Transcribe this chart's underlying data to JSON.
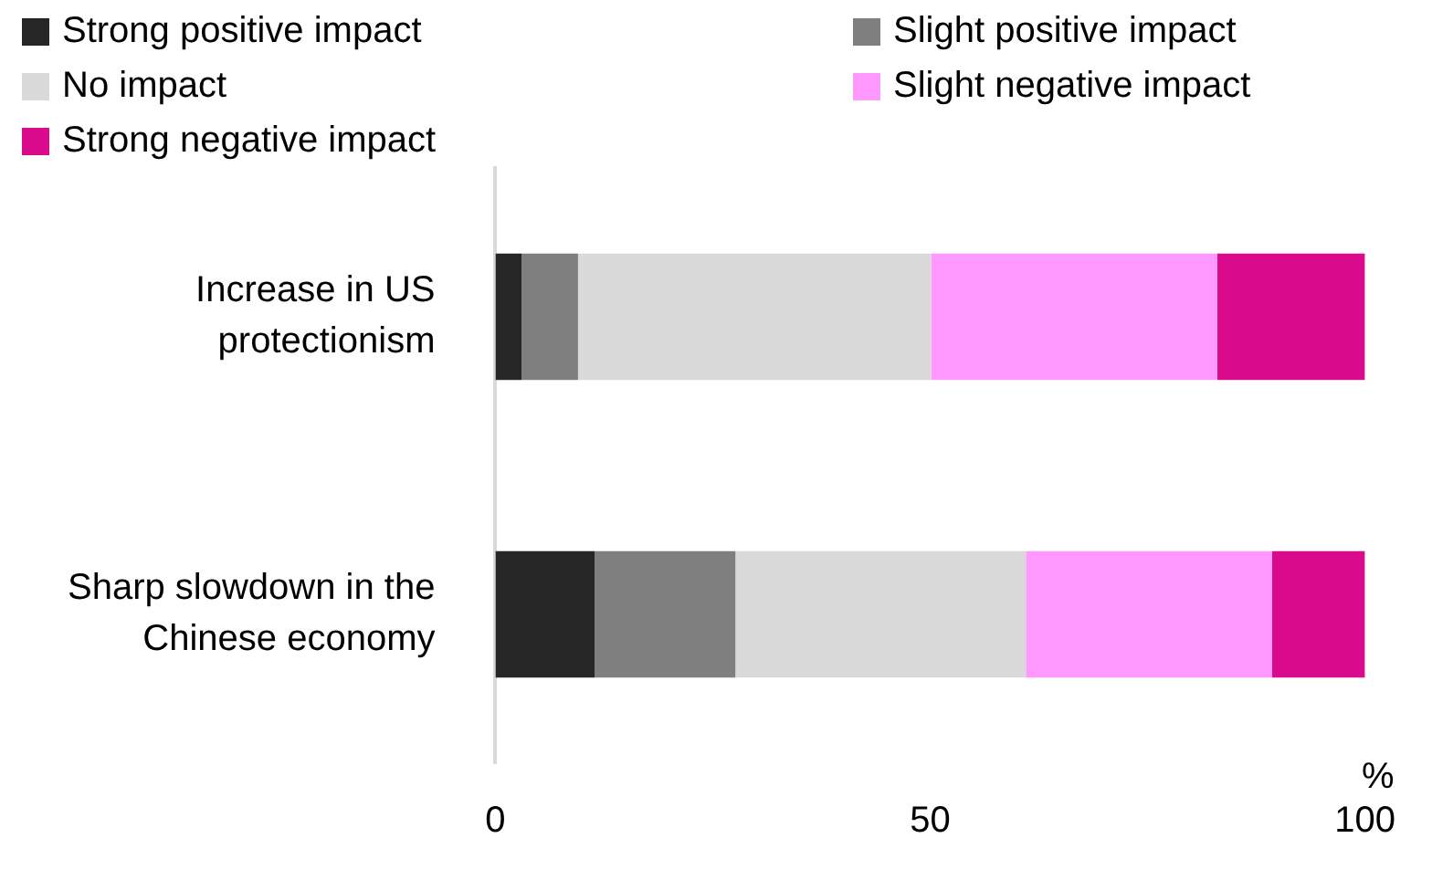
{
  "chart_data": {
    "type": "bar",
    "orientation": "horizontal",
    "stacked": true,
    "xlabel": "%",
    "legend": "top",
    "grid": false,
    "categories": [
      "Increase in US protectionism",
      "Sharp slowdown in the Chinese economy"
    ],
    "xlim": [
      0,
      100
    ],
    "xticks": [
      0,
      50,
      100
    ],
    "series": [
      {
        "name": "Strong positive impact",
        "color": "#262626",
        "values": [
          3.0,
          11.4
        ]
      },
      {
        "name": "Slight positive impact",
        "color": "#7f7f7f",
        "values": [
          6.5,
          16.2
        ]
      },
      {
        "name": "No impact",
        "color": "#d9d9d9",
        "values": [
          40.6,
          33.4
        ]
      },
      {
        "name": "Slight negative impact",
        "color": "#ff99ff",
        "values": [
          32.9,
          28.3
        ]
      },
      {
        "name": "Strong negative impact",
        "color": "#d90b8c",
        "values": [
          17.0,
          10.7
        ]
      }
    ]
  }
}
